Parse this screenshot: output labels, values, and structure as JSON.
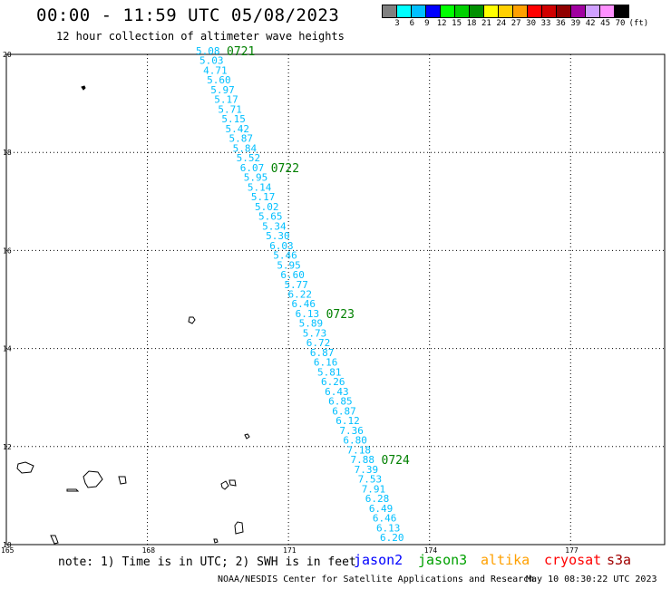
{
  "header": {
    "title": "00:00 - 11:59 UTC 05/08/2023",
    "subtitle": "12 hour collection of altimeter wave heights"
  },
  "color_scale": {
    "labels": [
      "3",
      "6",
      "9",
      "12",
      "15",
      "18",
      "21",
      "24",
      "27",
      "30",
      "33",
      "36",
      "39",
      "42",
      "45",
      "70",
      "(ft)"
    ],
    "colors": [
      "#808080",
      "#00ffff",
      "#00bfff",
      "#0000ff",
      "#00ff00",
      "#00d000",
      "#009000",
      "#ffff00",
      "#ffd000",
      "#ffa000",
      "#ff0000",
      "#d00000",
      "#900000",
      "#a000a0",
      "#d0a0ff",
      "#ff90ff",
      "#000000"
    ]
  },
  "map": {
    "lat_labels": [
      "20",
      "18",
      "16",
      "14",
      "12",
      "10"
    ],
    "lon_labels": [
      "165",
      "168",
      "171",
      "174",
      "177"
    ],
    "lat_range": [
      10,
      20
    ],
    "lon_range": [
      165,
      179
    ],
    "grid": true,
    "coastline_color": "#000000"
  },
  "track": {
    "satellite": "jason3",
    "value_color": "#00bfff",
    "time_color": "#008000",
    "values": [
      "5.08",
      "5.03",
      "4.71",
      "5.60",
      "5.97",
      "5.17",
      "5.71",
      "5.15",
      "5.42",
      "5.87",
      "5.84",
      "5.52",
      "6.07",
      "5.95",
      "5.14",
      "5.17",
      "5.02",
      "5.65",
      "5.34",
      "5.30",
      "6.03",
      "5.46",
      "5.95",
      "6.60",
      "5.77",
      "6.22",
      "6.46",
      "6.13",
      "5.89",
      "5.73",
      "6.72",
      "6.87",
      "6.16",
      "5.81",
      "6.26",
      "6.43",
      "6.85",
      "6.87",
      "6.12",
      "7.36",
      "6.80",
      "7.18",
      "7.88",
      "7.39",
      "7.53",
      "7.91",
      "6.28",
      "6.49",
      "6.46",
      "6.13",
      "6.20"
    ],
    "time_labels": [
      {
        "text": "0721",
        "index": 0
      },
      {
        "text": "0722",
        "index": 12
      },
      {
        "text": "0723",
        "index": 27
      },
      {
        "text": "0724",
        "index": 42
      }
    ]
  },
  "footer": {
    "note": "note: 1) Time is in UTC; 2) SWH is in feet",
    "legend": [
      {
        "name": "jason2",
        "color": "#0000ff"
      },
      {
        "name": "jason3",
        "color": "#00a000"
      },
      {
        "name": "altika",
        "color": "#ffa000"
      },
      {
        "name": "cryosat",
        "color": "#ff0000"
      },
      {
        "name": "s3a",
        "color": "#a00000"
      }
    ],
    "credit": "NOAA/NESDIS Center for Satellite Applications and Research",
    "timestamp": "May 10 08:30:22 UTC 2023"
  }
}
